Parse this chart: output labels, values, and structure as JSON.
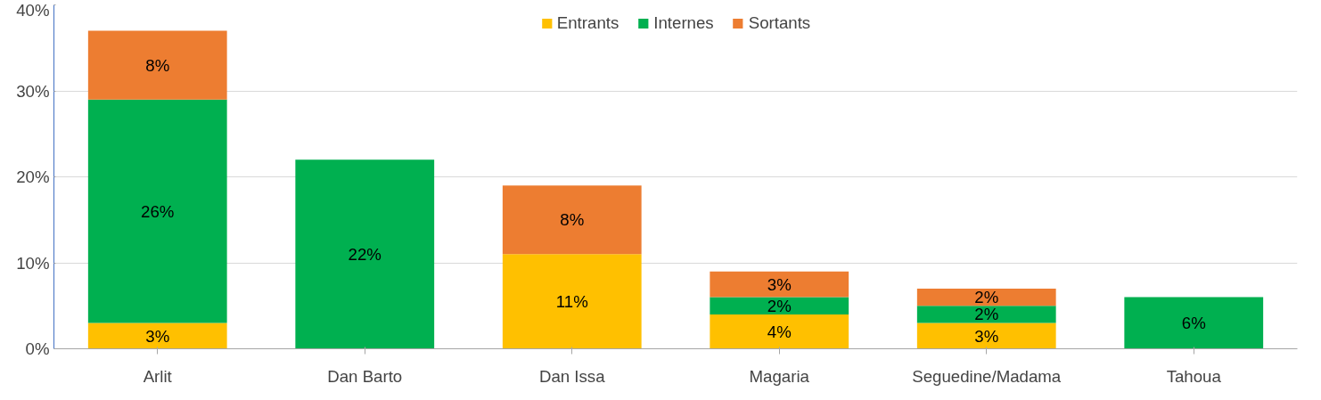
{
  "chart_data": {
    "type": "bar",
    "stacked": true,
    "categories": [
      "Arlit",
      "Dan Barto",
      "Dan Issa",
      "Magaria",
      "Seguedine/Madama",
      "Tahoua"
    ],
    "series": [
      {
        "name": "Entrants",
        "color": "#ffc000",
        "values": [
          3,
          null,
          11,
          4,
          3,
          null
        ],
        "value_labels": [
          "3%",
          null,
          "11%",
          "4%",
          "3%",
          null
        ]
      },
      {
        "name": "Internes",
        "color": "#00b050",
        "values": [
          26,
          22,
          null,
          2,
          2,
          6
        ],
        "value_labels": [
          "26%",
          "22%",
          null,
          "2%",
          "2%",
          "6%"
        ]
      },
      {
        "name": "Sortants",
        "color": "#ed7d31",
        "values": [
          8,
          null,
          8,
          3,
          2,
          null
        ],
        "value_labels": [
          "8%",
          null,
          "8%",
          "3%",
          "2%",
          null
        ]
      }
    ],
    "ylim": [
      0,
      40
    ],
    "yticks": [
      {
        "value": 0,
        "label": "0%"
      },
      {
        "value": 10,
        "label": "10%"
      },
      {
        "value": 20,
        "label": "20%"
      },
      {
        "value": 30,
        "label": "30%"
      },
      {
        "value": 40,
        "label": "40%"
      }
    ],
    "grid": "y",
    "legend": "top"
  }
}
